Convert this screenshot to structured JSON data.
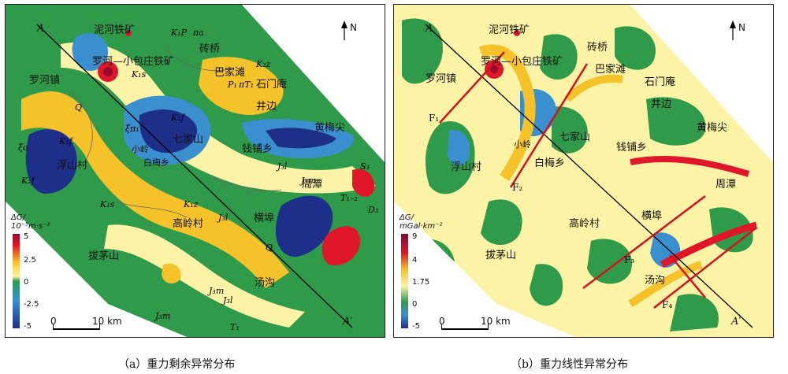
{
  "panel_a": {
    "caption": "（a）重力剩余异常分布",
    "north": "N",
    "profile": {
      "start": "A",
      "end": "A′"
    },
    "legend": {
      "title_line1": "ΔG/",
      "title_line2": "10⁻⁵m·s⁻²",
      "ticks": [
        "5",
        "2.5",
        "0",
        "-2.5",
        "-5"
      ]
    },
    "scale": {
      "zero": "0",
      "label": "10 km"
    },
    "places": [
      "泥河铁矿",
      "罗河—小包庄铁矿",
      "砖桥",
      "巴家滩",
      "石门庵",
      "罗河镇",
      "井边",
      "七家山",
      "钱铺乡",
      "黄梅尖",
      "小岭",
      "白梅乡",
      "浮山村",
      "周潭",
      "横埠",
      "高岭村",
      "拔茅山",
      "汤沟"
    ],
    "strata": [
      "K₁P",
      "πa",
      "K₂z",
      "K₁s",
      "P₁",
      "πT₁",
      "Q",
      "K₁f",
      "ξo",
      "K₂f",
      "ξπ₁",
      "K₁f",
      "J₃l",
      "J₃m",
      "K₁s",
      "K₁z",
      "J₃l",
      "T₁₋₂",
      "D₃",
      "S₃",
      "Q",
      "J₃m",
      "J₃l",
      "J₃m",
      "T₁"
    ]
  },
  "panel_b": {
    "caption": "（b）重力线性异常分布",
    "north": "N",
    "profile": {
      "start": "A",
      "end": "A′"
    },
    "legend": {
      "title_line1": "ΔG/",
      "title_line2": "mGal·km⁻²",
      "ticks": [
        "9",
        "4",
        "1.75",
        "0",
        "-5"
      ]
    },
    "scale": {
      "zero": "0",
      "label": "10 km"
    },
    "places": [
      "泥河铁矿",
      "罗河—小包庄铁矿",
      "砖桥",
      "巴家滩",
      "石门庵",
      "罗河镇",
      "井边",
      "七家山",
      "钱铺乡",
      "黄梅尖",
      "小岭",
      "白梅乡",
      "浮山村",
      "周潭",
      "横埠",
      "高岭村",
      "拔茅山",
      "汤沟"
    ],
    "faults": [
      "F₁",
      "F₂",
      "F₃",
      "F₄"
    ]
  },
  "colors": {
    "high": "#e0162b",
    "mid_high": "#f6c229",
    "mid": "#fdf3a6",
    "zero": "#2f9b4a",
    "low": "#3a8fcf",
    "very_low": "#1e2f8a",
    "fault": "#d5111e"
  }
}
